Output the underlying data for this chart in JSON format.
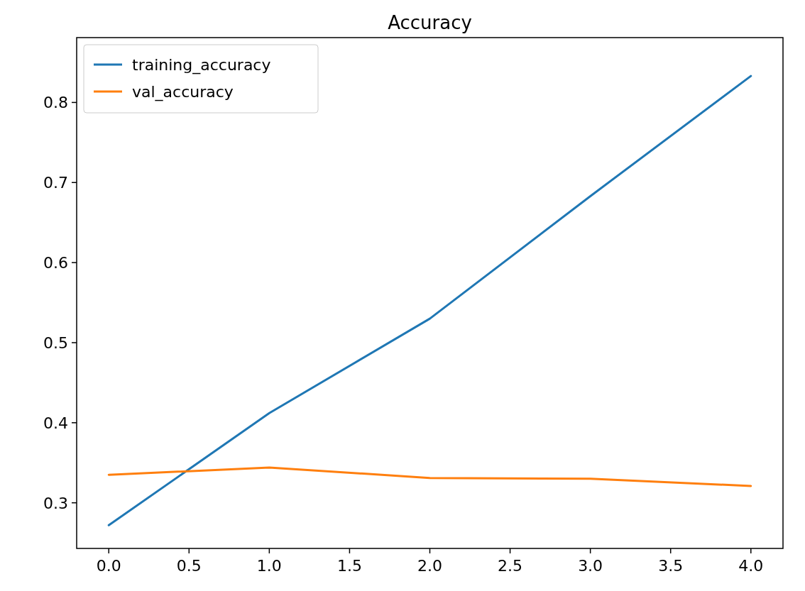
{
  "chart_data": {
    "type": "line",
    "title": "Accuracy",
    "x": [
      0,
      1,
      2,
      3,
      4
    ],
    "series": [
      {
        "name": "training_accuracy",
        "color": "#1f77b4",
        "values": [
          0.272,
          0.412,
          0.53,
          0.683,
          0.833
        ]
      },
      {
        "name": "val_accuracy",
        "color": "#ff7f0e",
        "values": [
          0.335,
          0.344,
          0.331,
          0.33,
          0.321
        ]
      }
    ],
    "xlim": [
      -0.2,
      4.2
    ],
    "xticks": [
      {
        "value": 0,
        "label": "0.0"
      },
      0.5,
      {
        "value": 1,
        "label": "1.0"
      },
      1.5,
      {
        "value": 2,
        "label": "2.0"
      },
      2.5,
      {
        "value": 3,
        "label": "3.0"
      },
      3.5,
      {
        "value": 4,
        "label": "4.0"
      }
    ],
    "ylim": [
      0.243,
      0.881
    ],
    "yticks": [
      0.3,
      0.4,
      0.5,
      0.6,
      0.7,
      0.8
    ],
    "legend": "top left",
    "grid": false,
    "marker": "none",
    "line_style": "solid"
  }
}
